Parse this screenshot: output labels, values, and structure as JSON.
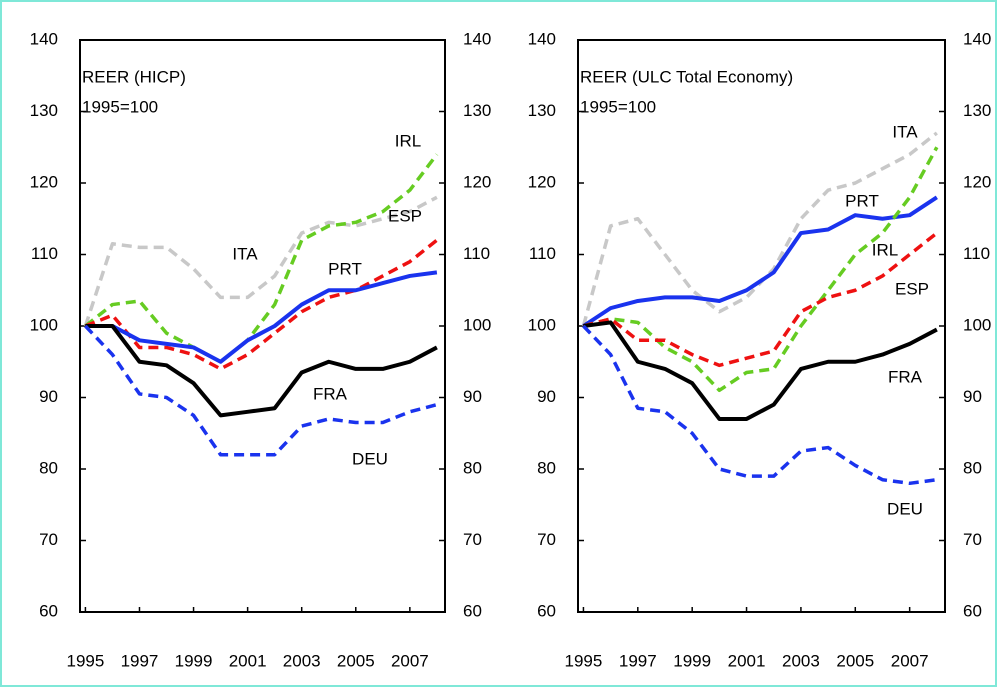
{
  "chart_data": [
    {
      "type": "line",
      "title": "REER (HICP)",
      "subtitle": "1995=100",
      "x": [
        1995,
        1996,
        1997,
        1998,
        1999,
        2000,
        2001,
        2002,
        2003,
        2004,
        2005,
        2006,
        2007,
        2008
      ],
      "xlim": [
        1994.8,
        2008.3
      ],
      "xticks": [
        1995,
        1997,
        1999,
        2001,
        2003,
        2005,
        2007
      ],
      "ylim": [
        60,
        140
      ],
      "yticks": [
        60,
        70,
        80,
        90,
        100,
        110,
        120,
        130,
        140
      ],
      "y2lim": [
        60,
        140
      ],
      "y2ticks": [
        60,
        70,
        80,
        90,
        100,
        110,
        120,
        130,
        140
      ],
      "series": [
        {
          "name": "ITA",
          "color": "#c8c8c8",
          "linestyle": "dashed",
          "values": [
            100,
            111.5,
            111,
            111,
            108,
            104,
            104,
            107,
            113,
            114.5,
            114,
            115,
            116,
            118
          ]
        },
        {
          "name": "IRL",
          "color": "#66cc22",
          "linestyle": "dashed",
          "values": [
            100,
            103,
            103.5,
            99,
            97,
            95,
            98,
            103,
            112,
            114,
            114.5,
            116,
            119,
            124
          ]
        },
        {
          "name": "ESP",
          "color": "#ee1111",
          "linestyle": "dashed",
          "values": [
            100,
            101.5,
            97,
            97,
            96,
            94,
            96,
            99,
            102,
            104,
            105,
            107,
            109,
            112
          ]
        },
        {
          "name": "PRT",
          "color": "#1a33ee",
          "linestyle": "solid",
          "values": [
            100,
            100,
            98,
            97.5,
            97,
            95,
            98,
            100,
            103,
            105,
            105,
            106,
            107,
            107.5
          ]
        },
        {
          "name": "FRA",
          "color": "#000000",
          "linestyle": "solid",
          "values": [
            100,
            100,
            95,
            94.5,
            92,
            87.5,
            88,
            88.5,
            93.5,
            95,
            94,
            94,
            95,
            97
          ]
        },
        {
          "name": "DEU",
          "color": "#1a33ee",
          "linestyle": "dashed",
          "values": [
            100,
            96,
            90.5,
            90,
            87.5,
            82,
            82,
            82,
            86,
            87,
            86.5,
            86.5,
            88,
            89
          ]
        }
      ]
    },
    {
      "type": "line",
      "title": "REER (ULC Total Economy)",
      "subtitle": "1995=100",
      "x": [
        1995,
        1996,
        1997,
        1998,
        1999,
        2000,
        2001,
        2002,
        2003,
        2004,
        2005,
        2006,
        2007,
        2008
      ],
      "xlim": [
        1994.8,
        2008.3
      ],
      "xticks": [
        1995,
        1997,
        1999,
        2001,
        2003,
        2005,
        2007
      ],
      "ylim": [
        60,
        140
      ],
      "yticks": [
        60,
        70,
        80,
        90,
        100,
        110,
        120,
        130,
        140
      ],
      "y2lim": [
        60,
        140
      ],
      "y2ticks": [
        60,
        70,
        80,
        90,
        100,
        110,
        120,
        130,
        140
      ],
      "series": [
        {
          "name": "ITA",
          "color": "#c8c8c8",
          "linestyle": "dashed",
          "values": [
            100,
            114,
            115,
            110,
            105,
            102,
            104,
            108,
            115,
            119,
            120,
            122,
            124,
            127
          ]
        },
        {
          "name": "PRT",
          "color": "#1a33ee",
          "linestyle": "solid",
          "values": [
            100,
            102.5,
            103.5,
            104,
            104,
            103.5,
            105,
            107.5,
            113,
            113.5,
            115.5,
            115,
            115.5,
            118
          ]
        },
        {
          "name": "IRL",
          "color": "#66cc22",
          "linestyle": "dashed",
          "values": [
            100,
            101,
            100.5,
            97,
            95,
            91,
            93.5,
            94,
            100,
            105,
            110,
            113,
            118,
            125
          ]
        },
        {
          "name": "ESP",
          "color": "#ee1111",
          "linestyle": "dashed",
          "values": [
            100,
            101,
            98,
            98,
            96,
            94.5,
            95.5,
            96.5,
            102,
            104,
            105,
            107,
            110,
            113
          ]
        },
        {
          "name": "FRA",
          "color": "#000000",
          "linestyle": "solid",
          "values": [
            100,
            100.5,
            95,
            94,
            92,
            87,
            87,
            89,
            94,
            95,
            95,
            96,
            97.5,
            99.5
          ]
        },
        {
          "name": "DEU",
          "color": "#1a33ee",
          "linestyle": "dashed",
          "values": [
            100,
            96,
            88.5,
            88,
            85,
            80,
            79,
            79,
            82.5,
            83,
            80.5,
            78.5,
            78,
            78.5
          ]
        }
      ]
    }
  ]
}
